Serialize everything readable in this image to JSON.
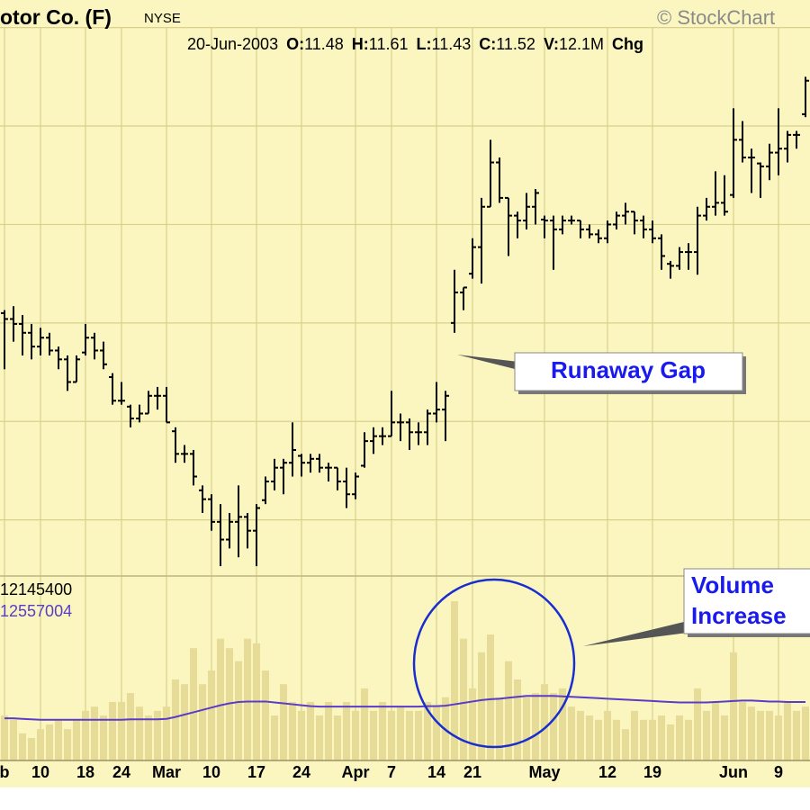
{
  "header": {
    "credit": "© StockChart",
    "date": "20-Jun-2003",
    "quote": [
      {
        "label": "O:",
        "value": "11.48"
      },
      {
        "label": "H:",
        "value": "11.61"
      },
      {
        "label": "L:",
        "value": "11.43"
      },
      {
        "label": "C:",
        "value": "11.52"
      },
      {
        "label": "V:",
        "value": "12.1M"
      },
      {
        "label": "Chg"
      }
    ]
  },
  "chart_data": [
    {
      "type": "ohlc",
      "title": "otor Co. (F)",
      "subtitle": "NYSE",
      "color": "#000000",
      "grid": true,
      "annotations": [
        "Runaway Gap"
      ],
      "categories": [
        "b",
        null,
        null,
        null,
        "10",
        null,
        null,
        null,
        null,
        "18",
        null,
        null,
        null,
        "24",
        null,
        null,
        null,
        null,
        "Mar",
        null,
        null,
        null,
        null,
        "10",
        null,
        null,
        null,
        null,
        "17",
        null,
        null,
        null,
        null,
        "24",
        null,
        null,
        null,
        null,
        null,
        "Apr",
        null,
        null,
        null,
        "7",
        null,
        null,
        null,
        null,
        "14",
        null,
        null,
        null,
        "21",
        null,
        null,
        null,
        null,
        null,
        null,
        null,
        "May",
        null,
        null,
        null,
        null,
        null,
        null,
        "12",
        null,
        null,
        null,
        null,
        "19",
        null,
        null,
        null,
        null,
        null,
        null,
        null,
        null,
        "Jun",
        null,
        null,
        null,
        null,
        "9",
        null,
        null,
        null
      ],
      "open": [
        9.1,
        9.04,
        8.99,
        8.9,
        8.76,
        8.85,
        8.72,
        8.63,
        8.4,
        8.7,
        8.85,
        8.72,
        8.45,
        8.21,
        8.15,
        8.03,
        8.08,
        8.26,
        8.26,
        7.9,
        7.67,
        7.67,
        7.3,
        7.21,
        6.98,
        6.8,
        6.98,
        7.03,
        6.89,
        7.2,
        7.39,
        7.53,
        7.58,
        7.65,
        7.58,
        7.62,
        7.53,
        7.53,
        7.39,
        7.26,
        7.55,
        7.8,
        7.85,
        7.85,
        7.99,
        7.99,
        7.89,
        7.89,
        8.08,
        8.12,
        9.0,
        9.31,
        9.5,
        9.77,
        10.18,
        10.63,
        10.27,
        10.09,
        10.04,
        10.18,
        10.05,
        10.04,
        9.95,
        10.04,
        10.04,
        9.95,
        9.9,
        9.86,
        10.0,
        10.09,
        10.13,
        10.04,
        9.95,
        9.86,
        9.6,
        9.58,
        9.72,
        9.72,
        10.09,
        10.18,
        10.22,
        10.3,
        10.86,
        10.68,
        10.62,
        10.59,
        10.73,
        10.77,
        10.91,
        11.12
      ],
      "high": [
        9.13,
        9.17,
        9.08,
        8.99,
        8.95,
        8.9,
        8.76,
        8.67,
        8.67,
        8.99,
        8.9,
        8.81,
        8.49,
        8.4,
        8.17,
        8.17,
        8.31,
        8.35,
        8.35,
        7.94,
        7.76,
        7.71,
        7.35,
        7.26,
        7.16,
        7.07,
        7.35,
        7.07,
        7.16,
        7.44,
        7.62,
        7.62,
        7.99,
        7.67,
        7.67,
        7.67,
        7.58,
        7.53,
        7.53,
        7.48,
        7.89,
        7.94,
        7.94,
        8.31,
        8.08,
        8.03,
        7.99,
        8.12,
        8.4,
        8.31,
        9.54,
        9.36,
        9.86,
        10.27,
        10.86,
        10.68,
        10.27,
        10.13,
        10.32,
        10.36,
        10.09,
        10.09,
        10.09,
        10.09,
        10.04,
        10.0,
        9.95,
        10.04,
        10.13,
        10.22,
        10.13,
        10.09,
        10.04,
        9.9,
        9.63,
        9.77,
        9.81,
        10.18,
        10.27,
        10.54,
        10.5,
        11.18,
        11.05,
        10.77,
        10.63,
        10.82,
        11.18,
        10.95,
        10.95,
        11.5
      ],
      "low": [
        8.53,
        8.81,
        8.67,
        8.63,
        8.67,
        8.67,
        8.53,
        8.31,
        8.4,
        8.67,
        8.63,
        8.53,
        8.17,
        8.17,
        7.94,
        7.99,
        8.08,
        8.12,
        7.99,
        7.58,
        7.58,
        7.35,
        7.07,
        6.89,
        6.53,
        6.71,
        6.62,
        6.71,
        6.53,
        7.16,
        7.3,
        7.26,
        7.44,
        7.44,
        7.48,
        7.48,
        7.39,
        7.3,
        7.12,
        7.21,
        7.53,
        7.67,
        7.76,
        7.85,
        7.8,
        7.71,
        7.76,
        7.76,
        7.99,
        7.8,
        8.9,
        9.13,
        9.45,
        9.4,
        10.18,
        10.22,
        9.68,
        9.86,
        9.95,
        10.0,
        9.86,
        9.54,
        9.9,
        10.0,
        9.86,
        9.86,
        9.81,
        9.81,
        9.95,
        10.0,
        9.9,
        9.86,
        9.81,
        9.54,
        9.45,
        9.54,
        9.54,
        9.49,
        10.04,
        10.09,
        10.09,
        10.27,
        10.63,
        10.32,
        10.27,
        10.45,
        10.5,
        10.63,
        10.77,
        11.09
      ],
      "close": [
        9.04,
        8.99,
        8.9,
        8.76,
        8.85,
        8.72,
        8.63,
        8.4,
        8.63,
        8.85,
        8.72,
        8.58,
        8.21,
        8.21,
        8.03,
        8.08,
        8.26,
        8.26,
        7.99,
        7.67,
        7.67,
        7.44,
        7.21,
        6.98,
        6.8,
        6.98,
        7.03,
        6.89,
        7.12,
        7.39,
        7.53,
        7.58,
        7.71,
        7.58,
        7.62,
        7.53,
        7.53,
        7.39,
        7.26,
        7.44,
        7.8,
        7.85,
        7.85,
        7.99,
        7.99,
        7.89,
        7.89,
        8.08,
        8.12,
        8.26,
        9.31,
        9.36,
        9.77,
        10.18,
        10.63,
        10.27,
        10.09,
        10.04,
        10.18,
        10.32,
        10.04,
        9.95,
        10.04,
        10.04,
        9.95,
        9.9,
        9.86,
        10.0,
        10.09,
        10.13,
        10.04,
        9.95,
        9.86,
        9.68,
        9.58,
        9.72,
        9.72,
        10.09,
        10.18,
        10.22,
        10.13,
        10.86,
        10.68,
        10.68,
        10.59,
        10.73,
        10.77,
        10.91,
        10.91,
        11.46
      ],
      "ylim": [
        6.43,
        12.28
      ],
      "ygrid": [
        7,
        8,
        9,
        10,
        11,
        12
      ]
    },
    {
      "type": "volume",
      "annotations": [
        "Volume",
        "Increase"
      ],
      "ylim": [
        0,
        39400000
      ],
      "series": [
        {
          "name": "12145400",
          "type": "bar",
          "color": "#e6dc98",
          "values": [
            9600000,
            8700000,
            5800000,
            4800000,
            6700000,
            7700000,
            8700000,
            6700000,
            8700000,
            10600000,
            11500000,
            9600000,
            12500000,
            12500000,
            14400000,
            11500000,
            9600000,
            10600000,
            11500000,
            17300000,
            16300000,
            24000000,
            16300000,
            19200000,
            26000000,
            24000000,
            21200000,
            26000000,
            25000000,
            19200000,
            9600000,
            16300000,
            12500000,
            10600000,
            12500000,
            9600000,
            12500000,
            9600000,
            12500000,
            10600000,
            15400000,
            10600000,
            12500000,
            10600000,
            11500000,
            10600000,
            10600000,
            12500000,
            11500000,
            13500000,
            34000000,
            26000000,
            15400000,
            23100000,
            26900000,
            13500000,
            21200000,
            17300000,
            13500000,
            14400000,
            16300000,
            14400000,
            15400000,
            11500000,
            10600000,
            9600000,
            8700000,
            10600000,
            8700000,
            6700000,
            10600000,
            8700000,
            8700000,
            9600000,
            7700000,
            9600000,
            8700000,
            15400000,
            10600000,
            12500000,
            9600000,
            23100000,
            12500000,
            11500000,
            10600000,
            10600000,
            9600000,
            12500000,
            10600000,
            11500000
          ]
        },
        {
          "name": "12557004",
          "type": "line",
          "color": "#5a3cc8",
          "values": [
            9000000,
            9000000,
            8900000,
            8800000,
            8700000,
            8700000,
            8700000,
            8700000,
            8700000,
            8700000,
            8700000,
            8700000,
            8700000,
            8700000,
            8800000,
            8800000,
            8800000,
            8800000,
            8900000,
            9300000,
            9800000,
            10300000,
            10800000,
            11300000,
            11800000,
            12200000,
            12500000,
            12600000,
            12600000,
            12600000,
            12400000,
            12200000,
            12000000,
            11800000,
            11600000,
            11500000,
            11500000,
            11500000,
            11500000,
            11500000,
            11500000,
            11500000,
            11500000,
            11500000,
            11500000,
            11500000,
            11500000,
            11600000,
            11600000,
            11700000,
            12000000,
            12300000,
            12600000,
            12900000,
            13100000,
            13200000,
            13400000,
            13600000,
            13800000,
            13800000,
            13800000,
            13800000,
            13700000,
            13600000,
            13500000,
            13400000,
            13300000,
            13200000,
            13100000,
            13000000,
            12900000,
            12800000,
            12700000,
            12600000,
            12500000,
            12400000,
            12400000,
            12400000,
            12400000,
            12500000,
            12600000,
            12700000,
            12800000,
            12800000,
            12700000,
            12600000,
            12600000,
            12500000,
            12500000,
            12500000
          ]
        }
      ]
    }
  ]
}
